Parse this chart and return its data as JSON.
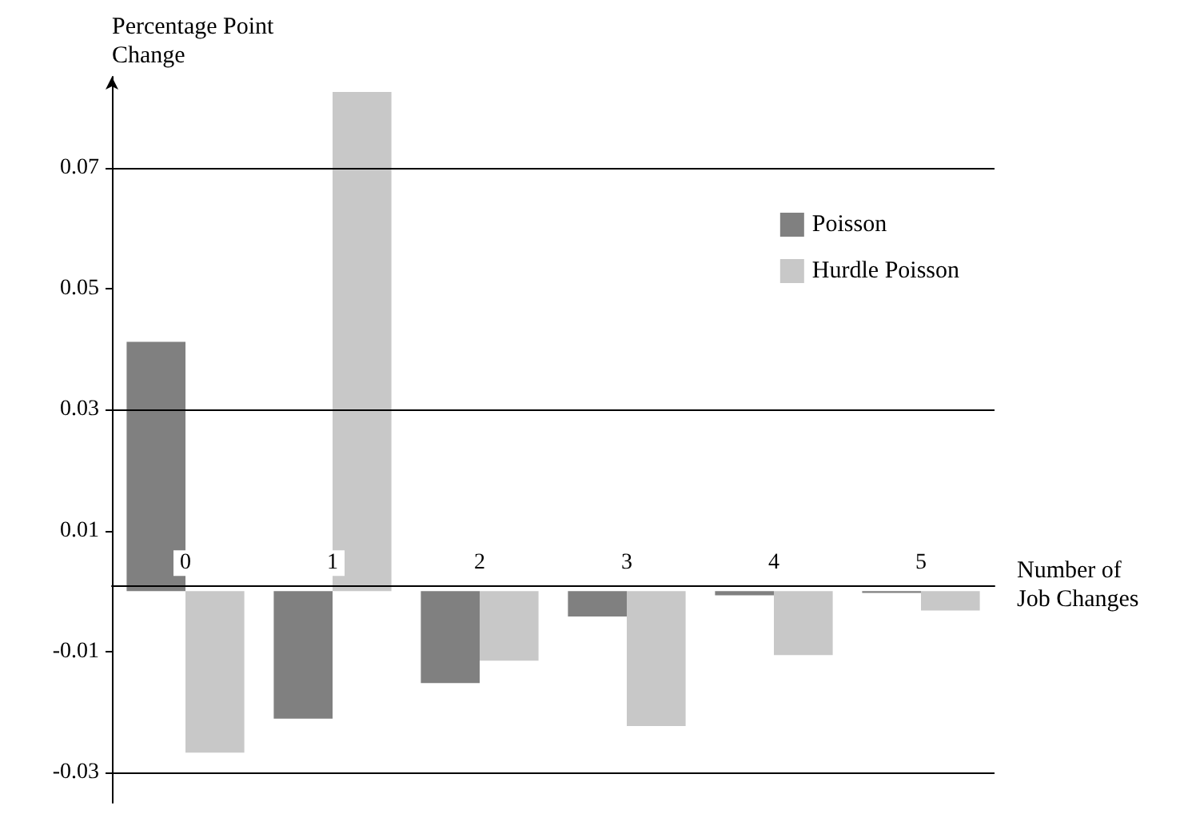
{
  "chart_data": {
    "type": "bar",
    "ylabel": "Percentage Point\nChange",
    "xlabel": "Number of\nJob Changes",
    "categories": [
      "0",
      "1",
      "2",
      "3",
      "4",
      "5"
    ],
    "series": [
      {
        "name": "Poisson",
        "color": "#808080",
        "values": [
          0.0412,
          -0.0211,
          -0.0152,
          -0.0042,
          -0.0007,
          -0.0003
        ]
      },
      {
        "name": "Hurdle Poisson",
        "color": "#c8c8c8",
        "values": [
          -0.0267,
          0.0825,
          -0.0115,
          -0.0223,
          -0.0106,
          -0.0032
        ]
      }
    ],
    "ylim": [
      -0.035,
      0.085
    ],
    "yticks": [
      -0.03,
      -0.01,
      0.01,
      0.03,
      0.05,
      0.07
    ],
    "ref_lines": [
      {
        "axis": "y",
        "value": 0.07,
        "color": "#000000"
      },
      {
        "axis": "y",
        "value": 0.03,
        "color": "#000000"
      },
      {
        "axis": "y",
        "value": -0.03,
        "color": "#000000"
      }
    ],
    "legend": "top right",
    "grid": false
  }
}
